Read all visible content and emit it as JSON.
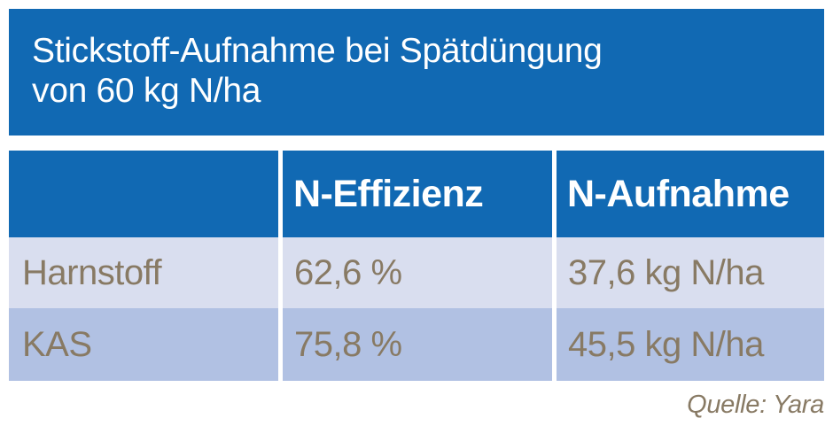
{
  "header": {
    "title_line1": "Stickstoff-Aufnahme bei Spätdüngung",
    "title_line2": "von 60 kg N/ha"
  },
  "table": {
    "columns": [
      "",
      "N-Effizienz",
      "N-Aufnahme"
    ],
    "rows": [
      {
        "label": "Harnstoff",
        "efficiency": "62,6 %",
        "uptake": "37,6 kg N/ha"
      },
      {
        "label": "KAS",
        "efficiency": "75,8 %",
        "uptake": "45,5 kg N/ha"
      }
    ]
  },
  "source": "Quelle: Yara",
  "colors": {
    "brand_blue": "#1169b3",
    "row_light": "#d9deef",
    "row_medium": "#b1c1e3",
    "text_brown": "#887a64",
    "text_white": "#ffffff"
  },
  "chart_data": {
    "type": "table",
    "title": "Stickstoff-Aufnahme bei Spätdüngung von 60 kg N/ha",
    "columns": [
      "",
      "N-Effizienz",
      "N-Aufnahme"
    ],
    "rows": [
      [
        "Harnstoff",
        "62,6 %",
        "37,6 kg N/ha"
      ],
      [
        "KAS",
        "75,8 %",
        "45,5 kg N/ha"
      ]
    ],
    "values": {
      "Harnstoff": {
        "n_effizienz_percent": 62.6,
        "n_aufnahme_kg_n_per_ha": 37.6
      },
      "KAS": {
        "n_effizienz_percent": 75.8,
        "n_aufnahme_kg_n_per_ha": 45.5
      }
    },
    "applied_nitrogen_kg_n_per_ha": 60,
    "source": "Quelle: Yara",
    "layout": {
      "legend": "none",
      "grid": "off"
    }
  }
}
